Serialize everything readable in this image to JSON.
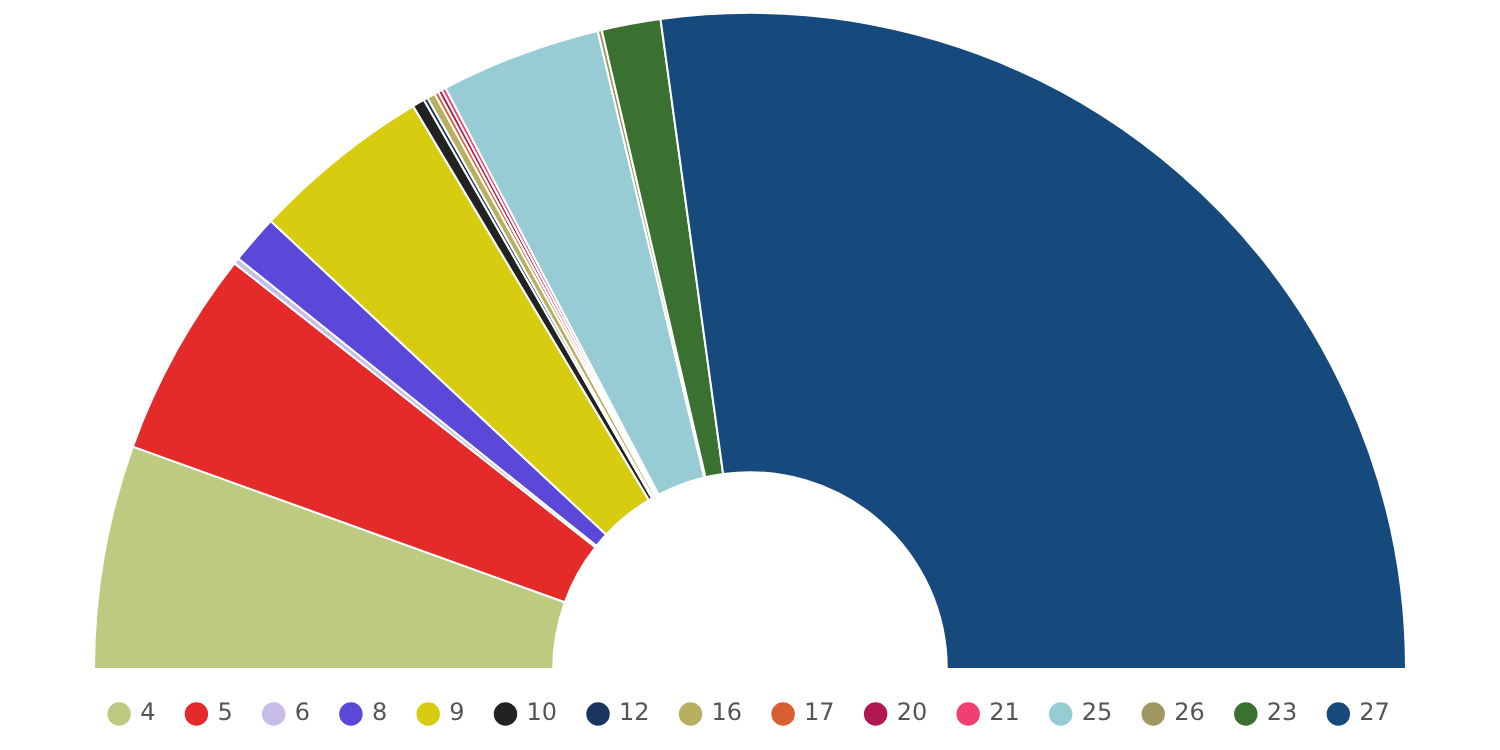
{
  "chart_data": {
    "type": "donut",
    "legend": "bottom",
    "categories": [
      "4",
      "5",
      "6",
      "8",
      "9",
      "10",
      "12",
      "16",
      "17",
      "20",
      "21",
      "25",
      "26",
      "23",
      "27"
    ],
    "values": [
      11.0,
      10.2,
      0.3,
      2.4,
      8.9,
      0.6,
      0.2,
      0.4,
      0.2,
      0.2,
      0.2,
      7.9,
      0.2,
      2.9,
      54.3
    ],
    "colors": [
      "#bccb80",
      "#e52a2a",
      "#c8bce8",
      "#5a48d8",
      "#d8cc10",
      "#222222",
      "#1a3560",
      "#b8b060",
      "#d86030",
      "#b01850",
      "#f04070",
      "#98ccd4",
      "#a09860",
      "#3a7030",
      "#174a7c"
    ]
  }
}
